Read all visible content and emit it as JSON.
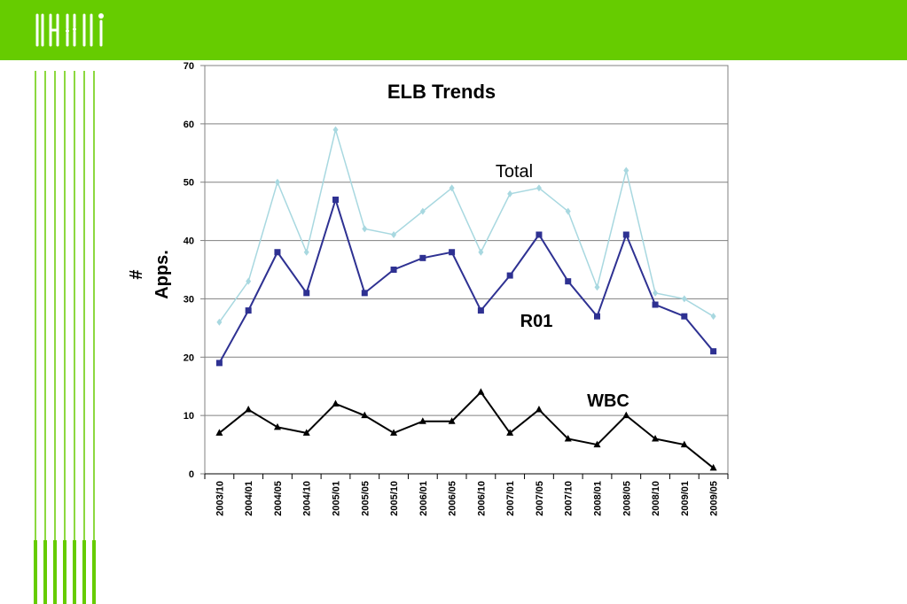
{
  "header": {
    "accent_color": "#66cc00",
    "logo": "nsf-logo-icon"
  },
  "chart_data": {
    "type": "line",
    "title": "ELB Trends",
    "xlabel": "",
    "ylabel": "# Apps.",
    "ylabel_lines": [
      "#",
      "Apps."
    ],
    "ylim": [
      0,
      70
    ],
    "yticks": [
      0,
      10,
      20,
      30,
      40,
      50,
      60,
      70
    ],
    "grid": true,
    "categories": [
      "2003/10",
      "2004/01",
      "2004/05",
      "2004/10",
      "2005/01",
      "2005/05",
      "2005/10",
      "2006/01",
      "2006/05",
      "2006/10",
      "2007/01",
      "2007/05",
      "2007/10",
      "2008/01",
      "2008/05",
      "2008/10",
      "2009/01",
      "2009/05"
    ],
    "series": [
      {
        "name": "Total",
        "color": "#a8d8e0",
        "marker": "diamond",
        "values": [
          26,
          33,
          50,
          38,
          59,
          42,
          41,
          45,
          49,
          38,
          48,
          49,
          45,
          32,
          52,
          31,
          30,
          27
        ]
      },
      {
        "name": "R01",
        "color": "#2e3192",
        "marker": "square",
        "values": [
          19,
          28,
          38,
          31,
          47,
          31,
          35,
          37,
          38,
          28,
          34,
          41,
          33,
          27,
          41,
          29,
          27,
          21
        ]
      },
      {
        "name": "WBC",
        "color": "#000000",
        "marker": "triangle",
        "values": [
          7,
          11,
          8,
          7,
          12,
          10,
          7,
          9,
          9,
          14,
          7,
          11,
          6,
          5,
          10,
          6,
          5,
          1
        ]
      }
    ],
    "annotations": [
      {
        "text": "Total",
        "series": "Total"
      },
      {
        "text": "R01",
        "series": "R01"
      },
      {
        "text": "WBC",
        "series": "WBC"
      }
    ]
  }
}
